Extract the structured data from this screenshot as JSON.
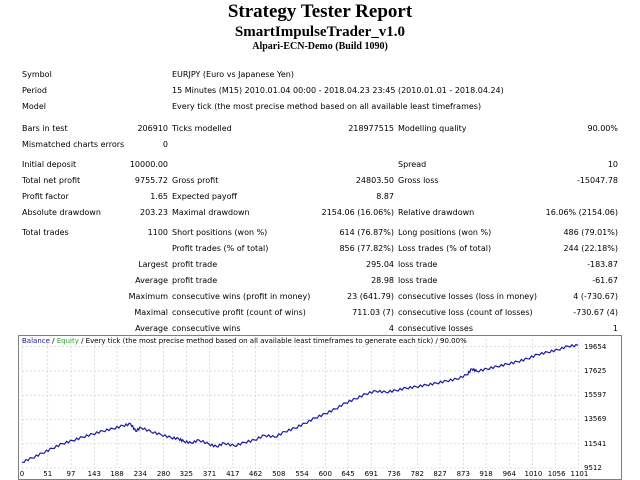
{
  "header": {
    "title": "Strategy Tester Report",
    "subtitle": "SmartImpulseTrader_v1.0",
    "server": "Alpari-ECN-Demo (Build 1090)"
  },
  "info": {
    "symbol_label": "Symbol",
    "symbol_value": "EURJPY (Euro vs Japanese Yen)",
    "period_label": "Period",
    "period_value": "15 Minutes (M15) 2010.01.04 00:00 - 2018.04.23 23:45 (2010.01.01 - 2018.04.24)",
    "model_label": "Model",
    "model_value": "Every tick (the most precise method based on all available least timeframes)"
  },
  "bars": {
    "bars_label": "Bars in test",
    "bars_value": "206910",
    "ticks_label": "Ticks modelled",
    "ticks_value": "218977515",
    "quality_label": "Modelling quality",
    "quality_value": "90.00%",
    "errors_label": "Mismatched charts errors",
    "errors_value": "0"
  },
  "money": {
    "deposit_label": "Initial deposit",
    "deposit_value": "10000.00",
    "spread_label": "Spread",
    "spread_value": "10",
    "net_label": "Total net profit",
    "net_value": "9755.72",
    "gross_profit_label": "Gross profit",
    "gross_profit_value": "24803.50",
    "gross_loss_label": "Gross loss",
    "gross_loss_value": "-15047.78",
    "pf_label": "Profit factor",
    "pf_value": "1.65",
    "payoff_label": "Expected payoff",
    "payoff_value": "8.87",
    "abs_dd_label": "Absolute drawdown",
    "abs_dd_value": "203.23",
    "max_dd_label": "Maximal drawdown",
    "max_dd_value": "2154.06 (16.06%)",
    "rel_dd_label": "Relative drawdown",
    "rel_dd_value": "16.06% (2154.06)"
  },
  "trades": {
    "total_label": "Total trades",
    "total_value": "1100",
    "short_label": "Short positions (won %)",
    "short_value": "614 (76.87%)",
    "long_label": "Long positions (won %)",
    "long_value": "486 (79.01%)",
    "profit_trades_label": "Profit trades (% of total)",
    "profit_trades_value": "856 (77.82%)",
    "loss_trades_label": "Loss trades (% of total)",
    "loss_trades_value": "244 (22.18%)",
    "largest_label": "Largest",
    "largest_profit_label": "profit trade",
    "largest_profit_value": "295.04",
    "largest_loss_label": "loss trade",
    "largest_loss_value": "-183.87",
    "average_label": "Average",
    "average_profit_label": "profit trade",
    "average_profit_value": "28.98",
    "average_loss_label": "loss trade",
    "average_loss_value": "-61.67",
    "maximum_label": "Maximum",
    "max_wins_label": "consecutive wins (profit in money)",
    "max_wins_value": "23 (641.79)",
    "max_losses_label": "consecutive losses (loss in money)",
    "max_losses_value": "4 (-730.67)",
    "maximal_label": "Maximal",
    "maximal_profit_label": "consecutive profit (count of wins)",
    "maximal_profit_value": "711.03 (7)",
    "maximal_loss_label": "consecutive loss (count of losses)",
    "maximal_loss_value": "-730.67 (4)",
    "avg_label": "Average",
    "avg_wins_label": "consecutive wins",
    "avg_wins_value": "4",
    "avg_losses_label": "consecutive losses",
    "avg_losses_value": "1"
  },
  "chart_legend": {
    "balance": "Balance",
    "sep1": " / ",
    "equity": "Equity",
    "rest": " / Every tick (the most precise method based on all available least timeframes to generate each tick) / 90.00%"
  },
  "colors": {
    "balance": "#1a1aa0",
    "equity": "#2ca82c",
    "legend_balance": "#1a1aa0"
  },
  "chart_data": {
    "type": "line",
    "title": "",
    "xlabel": "",
    "ylabel": "",
    "x_ticks": [
      "0",
      "51",
      "97",
      "143",
      "188",
      "234",
      "280",
      "325",
      "371",
      "417",
      "462",
      "508",
      "554",
      "600",
      "645",
      "691",
      "736",
      "782",
      "827",
      "873",
      "918",
      "964",
      "1010",
      "1056",
      "1101"
    ],
    "y_ticks": [
      "9512",
      "11541",
      "13569",
      "15597",
      "17625",
      "19654"
    ],
    "xlim": [
      0,
      1100
    ],
    "ylim": [
      9512,
      20300
    ],
    "grid": true,
    "series": [
      {
        "values": [
          [
            0,
            10000
          ],
          [
            20,
            10350
          ],
          [
            40,
            10750
          ],
          [
            60,
            11150
          ],
          [
            80,
            11550
          ],
          [
            100,
            11800
          ],
          [
            120,
            12100
          ],
          [
            140,
            12350
          ],
          [
            160,
            12600
          ],
          [
            180,
            12800
          ],
          [
            200,
            13050
          ],
          [
            215,
            13200
          ],
          [
            225,
            12600
          ],
          [
            235,
            12900
          ],
          [
            255,
            12550
          ],
          [
            275,
            12300
          ],
          [
            295,
            12050
          ],
          [
            310,
            11950
          ],
          [
            320,
            11750
          ],
          [
            335,
            11600
          ],
          [
            350,
            11850
          ],
          [
            370,
            11500
          ],
          [
            385,
            11300
          ],
          [
            400,
            11600
          ],
          [
            420,
            11350
          ],
          [
            440,
            11650
          ],
          [
            460,
            11850
          ],
          [
            480,
            12250
          ],
          [
            500,
            12100
          ],
          [
            520,
            12550
          ],
          [
            540,
            12850
          ],
          [
            560,
            13250
          ],
          [
            580,
            13700
          ],
          [
            600,
            14050
          ],
          [
            620,
            14450
          ],
          [
            640,
            14950
          ],
          [
            660,
            15300
          ],
          [
            680,
            15700
          ],
          [
            700,
            15950
          ],
          [
            720,
            15850
          ],
          [
            740,
            16000
          ],
          [
            760,
            16200
          ],
          [
            780,
            16300
          ],
          [
            800,
            16450
          ],
          [
            820,
            16600
          ],
          [
            840,
            16800
          ],
          [
            860,
            16950
          ],
          [
            880,
            17300
          ],
          [
            890,
            17800
          ],
          [
            900,
            17600
          ],
          [
            920,
            17800
          ],
          [
            940,
            18000
          ],
          [
            960,
            18200
          ],
          [
            980,
            18400
          ],
          [
            1000,
            18650
          ],
          [
            1020,
            19000
          ],
          [
            1040,
            19200
          ],
          [
            1060,
            19400
          ],
          [
            1080,
            19700
          ],
          [
            1100,
            19760
          ]
        ]
      }
    ]
  }
}
